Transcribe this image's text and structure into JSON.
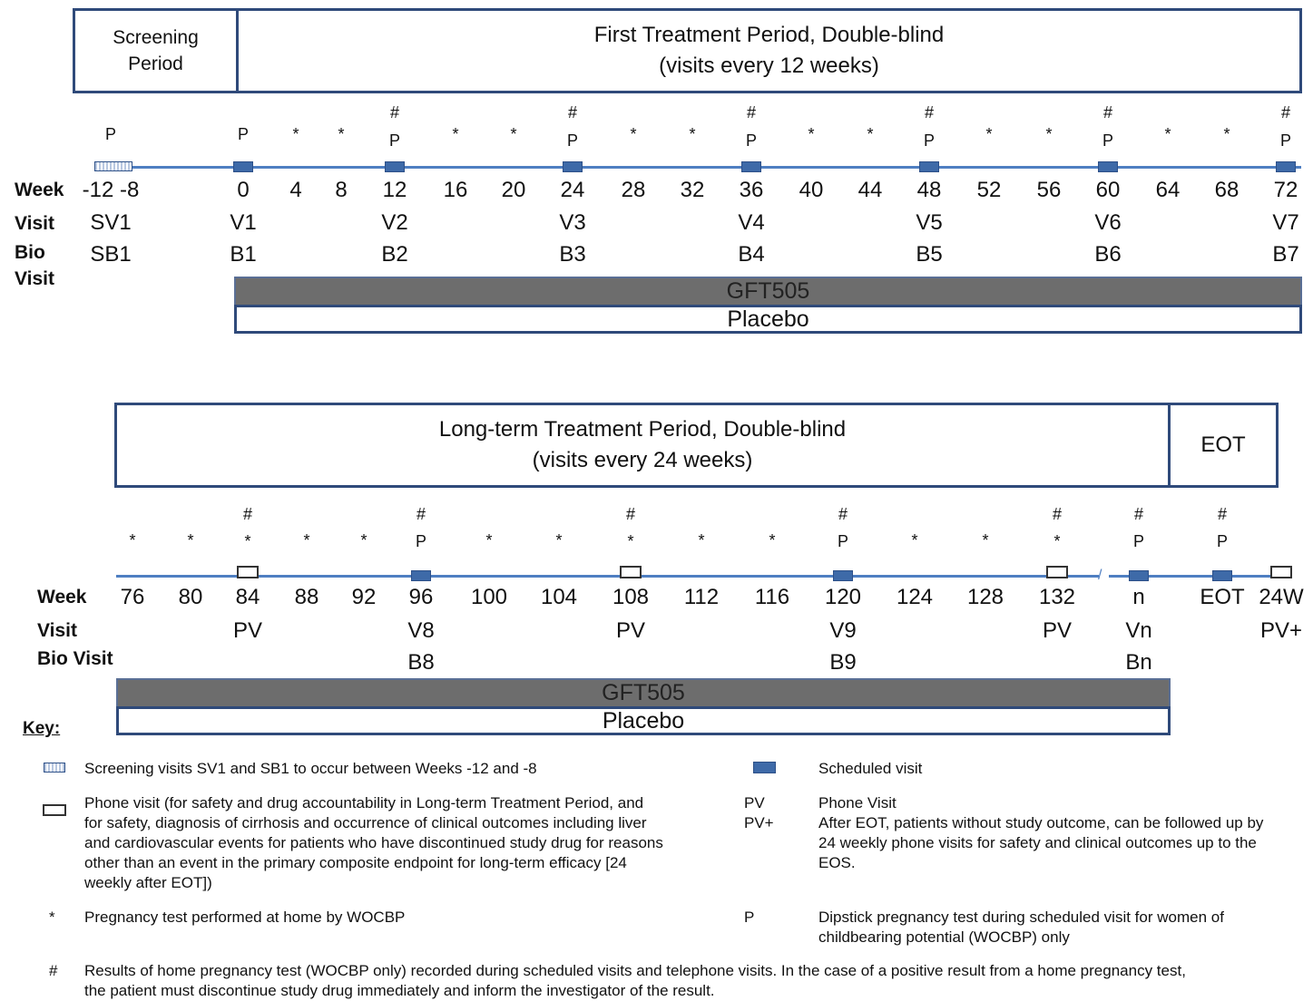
{
  "top": {
    "screening_header": [
      "Screening",
      "Period"
    ],
    "period_header": [
      "First Treatment Period, Double-blind",
      "(visits every 12 weeks)"
    ],
    "row_labels": {
      "week": "Week",
      "visit": "Visit",
      "bio": "Bio",
      "bio2": "Visit"
    },
    "weeks": [
      "-12 -8",
      "0",
      "4",
      "8",
      "12",
      "16",
      "20",
      "24",
      "28",
      "32",
      "36",
      "40",
      "44",
      "48",
      "52",
      "56",
      "60",
      "64",
      "68",
      "72"
    ],
    "visits": [
      "SV1",
      "V1",
      "",
      "",
      "V2",
      "",
      "",
      "V3",
      "",
      "",
      "V4",
      "",
      "",
      "V5",
      "",
      "",
      "V6",
      "",
      "",
      "V7"
    ],
    "bio_visits": [
      "SB1",
      "B1",
      "",
      "",
      "B2",
      "",
      "",
      "B3",
      "",
      "",
      "B4",
      "",
      "",
      "B5",
      "",
      "",
      "B6",
      "",
      "",
      "B7"
    ],
    "markers_top": [
      "",
      "",
      "",
      "",
      "#",
      "",
      "",
      "#",
      "",
      "",
      "#",
      "",
      "",
      "#",
      "",
      "",
      "#",
      "",
      "",
      "#"
    ],
    "markers_bottom": [
      "P",
      "P",
      "*",
      "*",
      "P",
      "*",
      "*",
      "P",
      "*",
      "*",
      "P",
      "*",
      "*",
      "P",
      "*",
      "*",
      "P",
      "*",
      "*",
      "P"
    ],
    "visit_types": [
      "screen",
      "sched",
      "",
      "",
      "sched",
      "",
      "",
      "sched",
      "",
      "",
      "sched",
      "",
      "",
      "sched",
      "",
      "",
      "sched",
      "",
      "",
      "sched"
    ],
    "drug_label": "GFT505",
    "placebo_label": "Placebo"
  },
  "bottom": {
    "period_header": [
      "Long-term Treatment Period, Double-blind",
      "(visits every 24 weeks)"
    ],
    "eot_header": "EOT",
    "row_labels": {
      "week": "Week",
      "visit": "Visit",
      "bio": "Bio Visit"
    },
    "weeks": [
      "76",
      "80",
      "84",
      "88",
      "92",
      "96",
      "100",
      "104",
      "108",
      "112",
      "116",
      "120",
      "124",
      "128",
      "132",
      "n",
      "EOT",
      "24W"
    ],
    "visits": [
      "",
      "",
      "PV",
      "",
      "",
      "V8",
      "",
      "",
      "PV",
      "",
      "",
      "V9",
      "",
      "",
      "PV",
      "Vn",
      "",
      "PV+"
    ],
    "bio_visits": [
      "",
      "",
      "",
      "",
      "",
      "B8",
      "",
      "",
      "",
      "",
      "",
      "B9",
      "",
      "",
      "",
      "Bn",
      "",
      ""
    ],
    "markers_top": [
      "",
      "",
      "#",
      "",
      "",
      "#",
      "",
      "",
      "#",
      "",
      "",
      "#",
      "",
      "",
      "#",
      "#",
      "#",
      ""
    ],
    "markers_bottom": [
      "*",
      "*",
      "*",
      "*",
      "*",
      "P",
      "*",
      "*",
      "*",
      "*",
      "*",
      "P",
      "*",
      "*",
      "*",
      "P",
      "P",
      ""
    ],
    "visit_types": [
      "",
      "",
      "phone",
      "",
      "",
      "sched",
      "",
      "",
      "phone",
      "",
      "",
      "sched",
      "",
      "",
      "phone",
      "sched",
      "sched",
      "phone"
    ],
    "drug_label": "GFT505",
    "placebo_label": "Placebo"
  },
  "key": {
    "title": "Key:",
    "screening": "Screening visits SV1 and SB1 to occur between Weeks -12 and -8",
    "scheduled": "Scheduled visit",
    "phone_visit_lines": [
      "Phone visit (for safety and drug accountability in Long-term Treatment Period, and",
      "for safety, diagnosis of cirrhosis and occurrence of clinical outcomes including liver",
      "and cardiovascular  events for patients who have discontinued study drug for reasons",
      "other than an event in the primary composite endpoint for long-term efficacy [24",
      "weekly after EOT])"
    ],
    "pv_abbr": "PV",
    "pvplus_abbr": "PV+",
    "pv_lines": [
      "Phone Visit",
      "After EOT, patients without study outcome, can be followed up by",
      "24 weekly phone visits for safety and clinical outcomes up to the",
      "EOS."
    ],
    "star_symbol": "*",
    "star_text": "Pregnancy test performed at home by WOCBP",
    "p_symbol": "P",
    "p_lines": [
      "Dipstick pregnancy test during scheduled visit for women of",
      "childbearing potential (WOCBP) only"
    ],
    "hash_symbol": "#",
    "hash_lines": [
      "Results of home pregnancy test (WOCBP only) recorded during scheduled visits and telephone visits. In the case of a positive result from a home pregnancy test,",
      "the patient must discontinue study drug immediately and inform the investigator of the result."
    ]
  }
}
